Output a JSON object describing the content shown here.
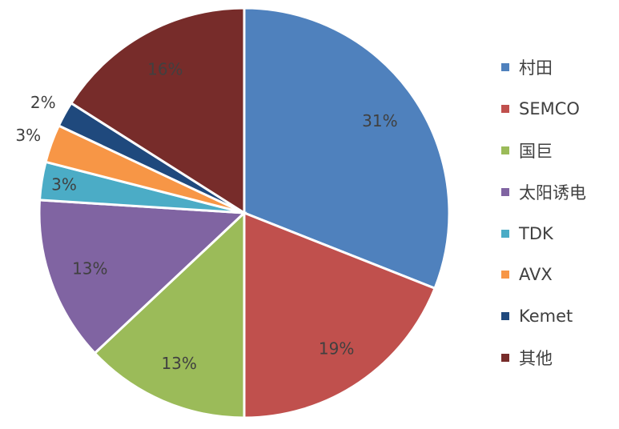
{
  "chart_data": {
    "type": "pie",
    "start": "top",
    "direction": "clockwise",
    "legend_position": "right",
    "slices": [
      {
        "name": "村田",
        "value": 31,
        "label": "31%",
        "color": "#4F81BD"
      },
      {
        "name": "SEMCO",
        "value": 19,
        "label": "19%",
        "color": "#C0504D"
      },
      {
        "name": "国巨",
        "value": 13,
        "label": "13%",
        "color": "#9BBB59"
      },
      {
        "name": "太阳诱电",
        "value": 13,
        "label": "13%",
        "color": "#8064A2"
      },
      {
        "name": "TDK",
        "value": 3,
        "label": "3%",
        "color": "#4BACC6"
      },
      {
        "name": "AVX",
        "value": 3,
        "label": "3%",
        "color": "#F79646"
      },
      {
        "name": "Kemet",
        "value": 2,
        "label": "2%",
        "color": "#1F497D"
      },
      {
        "name": "其他",
        "value": 16,
        "label": "16%",
        "color": "#772C2A"
      }
    ]
  }
}
